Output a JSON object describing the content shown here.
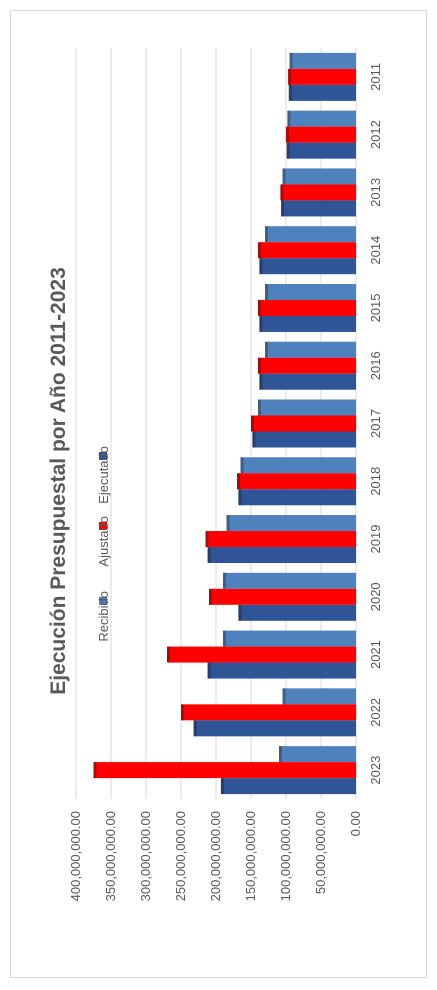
{
  "chart_data": {
    "type": "bar",
    "orientation": "rotated-90",
    "title": "Ejecución Presupuestal por Año 2011-2023",
    "categories": [
      "2011",
      "2012",
      "2013",
      "2014",
      "2015",
      "2016",
      "2017",
      "2018",
      "2019",
      "2020",
      "2021",
      "2022",
      "2023"
    ],
    "series": [
      {
        "name": "Recibido",
        "color": "#4f81bd",
        "values": [
          95000000,
          98000000,
          105000000,
          130000000,
          130000000,
          130000000,
          140000000,
          165000000,
          185000000,
          190000000,
          190000000,
          105000000,
          110000000
        ]
      },
      {
        "name": "Ajustado",
        "color": "#ff0000",
        "values": [
          97000000,
          100000000,
          108000000,
          140000000,
          140000000,
          140000000,
          150000000,
          170000000,
          215000000,
          210000000,
          270000000,
          250000000,
          375000000
        ]
      },
      {
        "name": "Ejecutado",
        "color": "#2f5597",
        "values": [
          96000000,
          99000000,
          107000000,
          138000000,
          138000000,
          138000000,
          148000000,
          168000000,
          212000000,
          168000000,
          212000000,
          232000000,
          193000000
        ]
      }
    ],
    "ylim": [
      0,
      400000000
    ],
    "yticks": [
      "0.00",
      "50,000,000.00",
      "100,000,000.00",
      "150,000,000.00",
      "200,000,000.00",
      "250,000,000.00",
      "300,000,000.00",
      "350,000,000.00",
      "400,000,000.00"
    ],
    "grid": true,
    "legend": "bottom"
  }
}
